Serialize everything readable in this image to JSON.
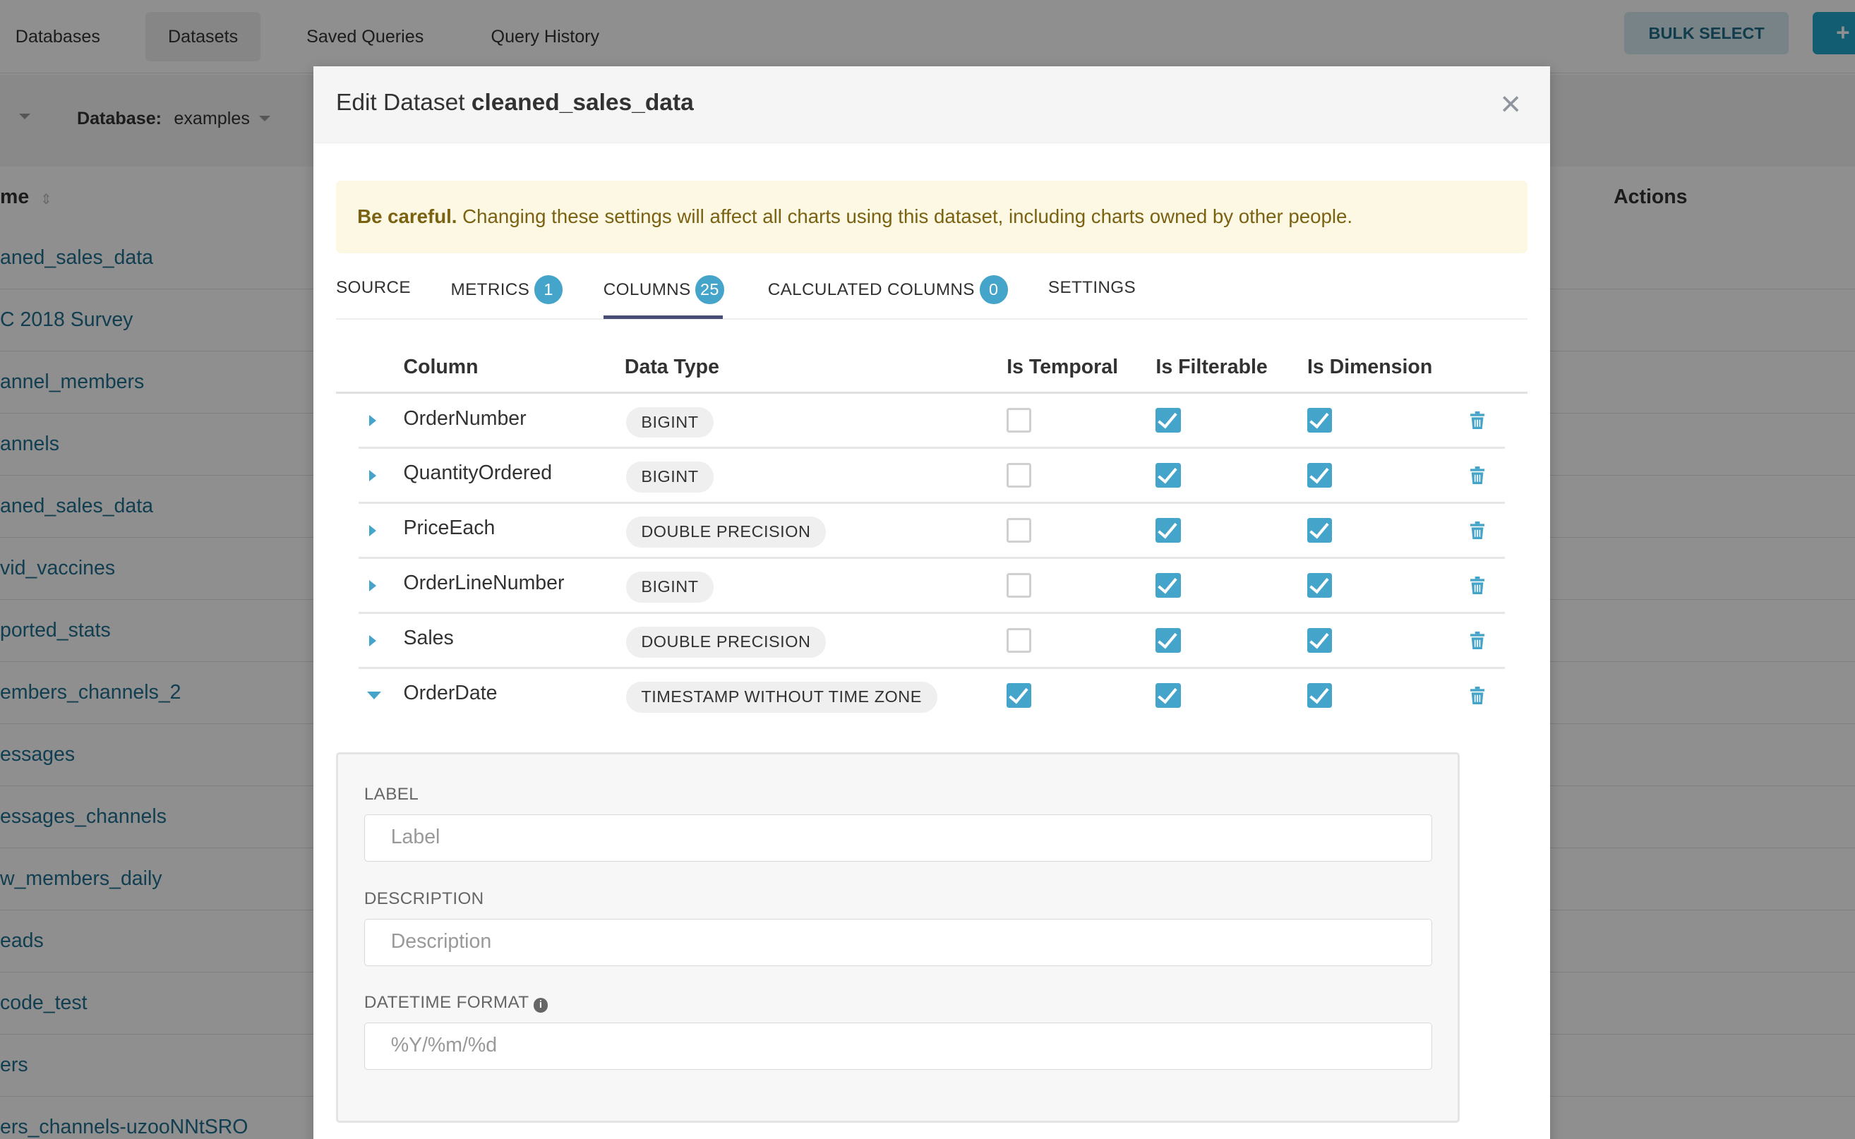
{
  "nav": {
    "tabs": [
      "Databases",
      "Datasets",
      "Saved Queries",
      "Query History"
    ],
    "active": "Datasets",
    "bulk_select": "BULK SELECT",
    "add_button": "+"
  },
  "filters": {
    "database_label": "Database:",
    "database_value": "examples"
  },
  "list": {
    "name_header": "me",
    "actions_header": "Actions",
    "rows": [
      "aned_sales_data",
      "C 2018 Survey",
      "annel_members",
      "annels",
      "aned_sales_data",
      "vid_vaccines",
      "ported_stats",
      "embers_channels_2",
      "essages",
      "essages_channels",
      "w_members_daily",
      "eads",
      "code_test",
      "ers",
      "ers_channels-uzooNNtSRO"
    ]
  },
  "modal": {
    "title_prefix": "Edit Dataset",
    "title_name": "cleaned_sales_data",
    "close": "×",
    "alert": {
      "bold": "Be careful.",
      "text": "Changing these settings will affect all charts using this dataset, including charts owned by other people."
    },
    "tabs": [
      {
        "label": "SOURCE"
      },
      {
        "label": "METRICS",
        "count": "1"
      },
      {
        "label": "COLUMNS",
        "count": "25",
        "active": true
      },
      {
        "label": "CALCULATED COLUMNS",
        "count": "0"
      },
      {
        "label": "SETTINGS"
      }
    ],
    "table": {
      "headers": [
        "Column",
        "Data Type",
        "Is Temporal",
        "Is Filterable",
        "Is Dimension"
      ],
      "rows": [
        {
          "name": "OrderNumber",
          "type": "BIGINT",
          "temporal": false,
          "filterable": true,
          "dimension": true,
          "expanded": false
        },
        {
          "name": "QuantityOrdered",
          "type": "BIGINT",
          "temporal": false,
          "filterable": true,
          "dimension": true,
          "expanded": false
        },
        {
          "name": "PriceEach",
          "type": "DOUBLE PRECISION",
          "temporal": false,
          "filterable": true,
          "dimension": true,
          "expanded": false
        },
        {
          "name": "OrderLineNumber",
          "type": "BIGINT",
          "temporal": false,
          "filterable": true,
          "dimension": true,
          "expanded": false
        },
        {
          "name": "Sales",
          "type": "DOUBLE PRECISION",
          "temporal": false,
          "filterable": true,
          "dimension": true,
          "expanded": false
        },
        {
          "name": "OrderDate",
          "type": "TIMESTAMP WITHOUT TIME ZONE",
          "temporal": true,
          "filterable": true,
          "dimension": true,
          "expanded": true
        }
      ]
    },
    "details": {
      "label_title": "LABEL",
      "label_placeholder": "Label",
      "description_title": "DESCRIPTION",
      "description_placeholder": "Description",
      "datetime_title": "DATETIME FORMAT",
      "datetime_placeholder": "%Y/%m/%d"
    }
  },
  "colors": {
    "accent": "#45a4c9",
    "tab_underline": "#484d78",
    "alert_bg": "#fcf8e4"
  }
}
